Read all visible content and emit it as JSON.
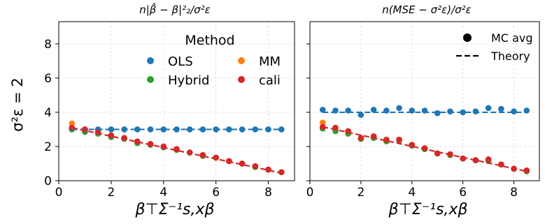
{
  "figure": {
    "row_label": "σ²ε = 2",
    "colors": {
      "OLS": "#1f77b4",
      "MM": "#ff7f0e",
      "Hybrid": "#2ca02c",
      "cali": "#d62728"
    }
  },
  "chart_data": [
    {
      "type": "scatter",
      "title": "n|β̂ − β|²₂/σ²ε",
      "xlabel": "β⊤Σ⁻¹s,xβ",
      "ylabel": "",
      "xlim": [
        0,
        9.0
      ],
      "ylim": [
        0,
        9.3
      ],
      "xticks": [
        0,
        2,
        4,
        6,
        8
      ],
      "yticks": [
        0,
        2,
        4,
        6,
        8
      ],
      "grid": true,
      "legend": {
        "title": "Method",
        "position": "upper-right",
        "entries": [
          "OLS",
          "MM",
          "Hybrid",
          "cali"
        ]
      },
      "x": [
        0.5,
        1.0,
        1.5,
        2.0,
        2.5,
        3.0,
        3.5,
        4.0,
        4.5,
        5.0,
        5.5,
        6.0,
        6.5,
        7.0,
        7.5,
        8.0,
        8.5
      ],
      "series": [
        {
          "name": "OLS",
          "values": [
            3.0,
            2.95,
            3.0,
            3.0,
            3.0,
            3.0,
            3.0,
            3.0,
            3.0,
            3.0,
            3.0,
            3.0,
            3.0,
            3.0,
            3.0,
            3.0,
            3.0
          ],
          "theory": [
            [
              0.5,
              3.0
            ],
            [
              8.5,
              3.0
            ]
          ]
        },
        {
          "name": "MM",
          "values": [
            3.35,
            3.0,
            2.8,
            2.65,
            2.45,
            2.3,
            2.15,
            2.0,
            1.85,
            1.65,
            1.5,
            1.35,
            1.15,
            1.0,
            0.85,
            0.65,
            0.5
          ]
        },
        {
          "name": "Hybrid",
          "values": [
            3.0,
            2.85,
            2.75,
            2.55,
            2.45,
            2.2,
            2.1,
            1.95,
            1.8,
            1.65,
            1.45,
            1.35,
            1.15,
            1.0,
            0.8,
            0.65,
            0.5
          ]
        },
        {
          "name": "cali",
          "values": [
            3.1,
            3.0,
            2.85,
            2.65,
            2.5,
            2.3,
            2.15,
            2.0,
            1.85,
            1.65,
            1.5,
            1.35,
            1.15,
            1.0,
            0.85,
            0.65,
            0.5
          ],
          "theory": [
            [
              0.5,
              3.1
            ],
            [
              8.5,
              0.45
            ]
          ]
        }
      ]
    },
    {
      "type": "scatter",
      "title": "n(MSE − σ²ε)/σ²ε",
      "xlabel": "β⊤Σ⁻¹s,xβ",
      "ylabel": "",
      "xlim": [
        0,
        9.0
      ],
      "ylim": [
        0,
        9.3
      ],
      "xticks": [
        0,
        2,
        4,
        6,
        8
      ],
      "yticks": [
        0,
        2,
        4,
        6,
        8
      ],
      "grid": true,
      "legend": {
        "position": "upper-right",
        "entries": [
          "MC avg",
          "Theory"
        ]
      },
      "x": [
        0.5,
        1.0,
        1.5,
        2.0,
        2.5,
        3.0,
        3.5,
        4.0,
        4.5,
        5.0,
        5.5,
        6.0,
        6.5,
        7.0,
        7.5,
        8.0,
        8.5
      ],
      "series": [
        {
          "name": "OLS",
          "values": [
            4.15,
            4.1,
            4.1,
            3.85,
            4.15,
            4.1,
            4.25,
            4.1,
            4.1,
            3.95,
            4.05,
            4.0,
            4.05,
            4.25,
            4.2,
            4.05,
            4.1
          ],
          "theory": [
            [
              0.5,
              4.0
            ],
            [
              8.5,
              4.0
            ]
          ]
        },
        {
          "name": "MM",
          "values": [
            3.4,
            3.05,
            2.85,
            2.45,
            2.55,
            2.35,
            2.4,
            2.1,
            1.85,
            1.6,
            1.55,
            1.3,
            1.2,
            1.2,
            0.95,
            0.7,
            0.6
          ]
        },
        {
          "name": "Hybrid",
          "values": [
            3.05,
            2.9,
            2.75,
            2.45,
            2.5,
            2.3,
            2.35,
            2.05,
            1.85,
            1.6,
            1.5,
            1.3,
            1.2,
            1.15,
            0.95,
            0.7,
            0.55
          ]
        },
        {
          "name": "cali",
          "values": [
            3.15,
            3.1,
            2.9,
            2.5,
            2.6,
            2.4,
            2.4,
            2.1,
            1.9,
            1.6,
            1.55,
            1.3,
            1.2,
            1.25,
            0.95,
            0.7,
            0.6
          ],
          "theory": [
            [
              0.5,
              3.15
            ],
            [
              8.5,
              0.55
            ]
          ]
        }
      ]
    }
  ]
}
